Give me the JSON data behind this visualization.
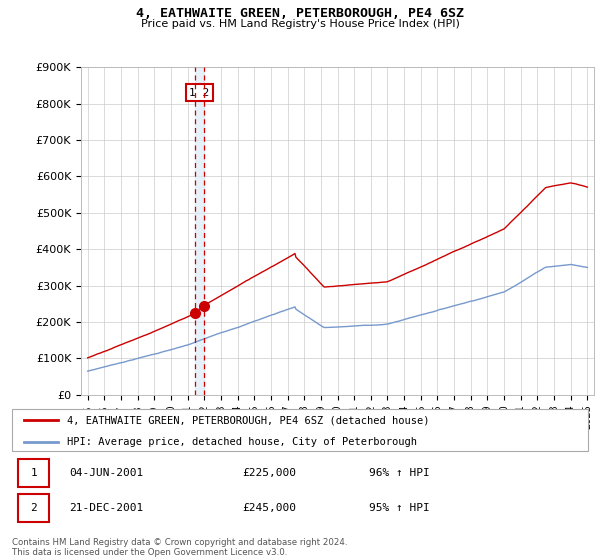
{
  "title": "4, EATHWAITE GREEN, PETERBOROUGH, PE4 6SZ",
  "subtitle": "Price paid vs. HM Land Registry's House Price Index (HPI)",
  "ylim": [
    0,
    900000
  ],
  "yticks": [
    0,
    100000,
    200000,
    300000,
    400000,
    500000,
    600000,
    700000,
    800000,
    900000
  ],
  "ytick_labels": [
    "£0",
    "£100K",
    "£200K",
    "£300K",
    "£400K",
    "£500K",
    "£600K",
    "£700K",
    "£800K",
    "£900K"
  ],
  "legend_line1": "4, EATHWAITE GREEN, PETERBOROUGH, PE4 6SZ (detached house)",
  "legend_line2": "HPI: Average price, detached house, City of Peterborough",
  "sale1_label": "1",
  "sale1_date": "04-JUN-2001",
  "sale1_price": "£225,000",
  "sale1_hpi": "96% ↑ HPI",
  "sale2_label": "2",
  "sale2_date": "21-DEC-2001",
  "sale2_price": "£245,000",
  "sale2_hpi": "95% ↑ HPI",
  "footer": "Contains HM Land Registry data © Crown copyright and database right 2024.\nThis data is licensed under the Open Government Licence v3.0.",
  "red_color": "#cc0000",
  "blue_color": "#7799cc",
  "vline_color": "#cc0000",
  "point1_x": 2001.42,
  "point1_y": 225000,
  "point2_x": 2001.97,
  "point2_y": 245000,
  "vline_x1": 2001.42,
  "vline_x2": 2001.97,
  "xlim_left": 1994.6,
  "xlim_right": 2025.4
}
